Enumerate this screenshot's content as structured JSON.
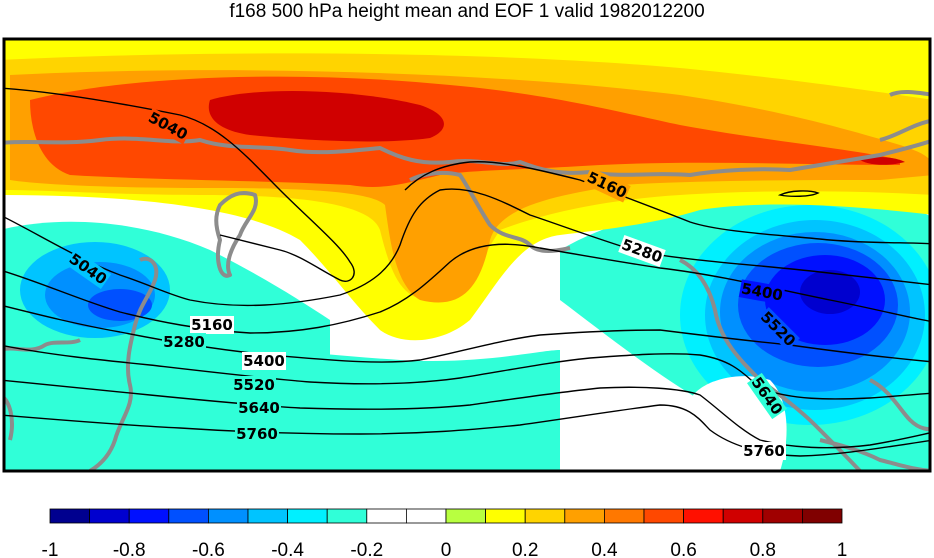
{
  "title": "f168 500 hPa height mean and EOF 1 valid 1982012200",
  "contour_labels": [
    "5040",
    "5040",
    "5160",
    "5160",
    "5280",
    "5280",
    "5400",
    "5400",
    "5520",
    "5520",
    "5640",
    "5640",
    "5760",
    "5760"
  ],
  "colorbar": {
    "ticks": [
      "-1",
      "-0.8",
      "-0.6",
      "-0.4",
      "-0.2",
      "0",
      "0.2",
      "0.4",
      "0.6",
      "0.8",
      "1"
    ],
    "colors": [
      "#00008f",
      "#0000cf",
      "#0010ff",
      "#0050ff",
      "#0090ff",
      "#00c4ff",
      "#00f0ff",
      "#30ffd8",
      "#ffffff",
      "#ffffff",
      "#b8ff40",
      "#ffff00",
      "#ffd400",
      "#ffa000",
      "#ff7800",
      "#ff4800",
      "#ff1000",
      "#d00000",
      "#a00000",
      "#800000"
    ]
  },
  "colors": {
    "land": "#8c8c8c",
    "contour": "#000000"
  }
}
